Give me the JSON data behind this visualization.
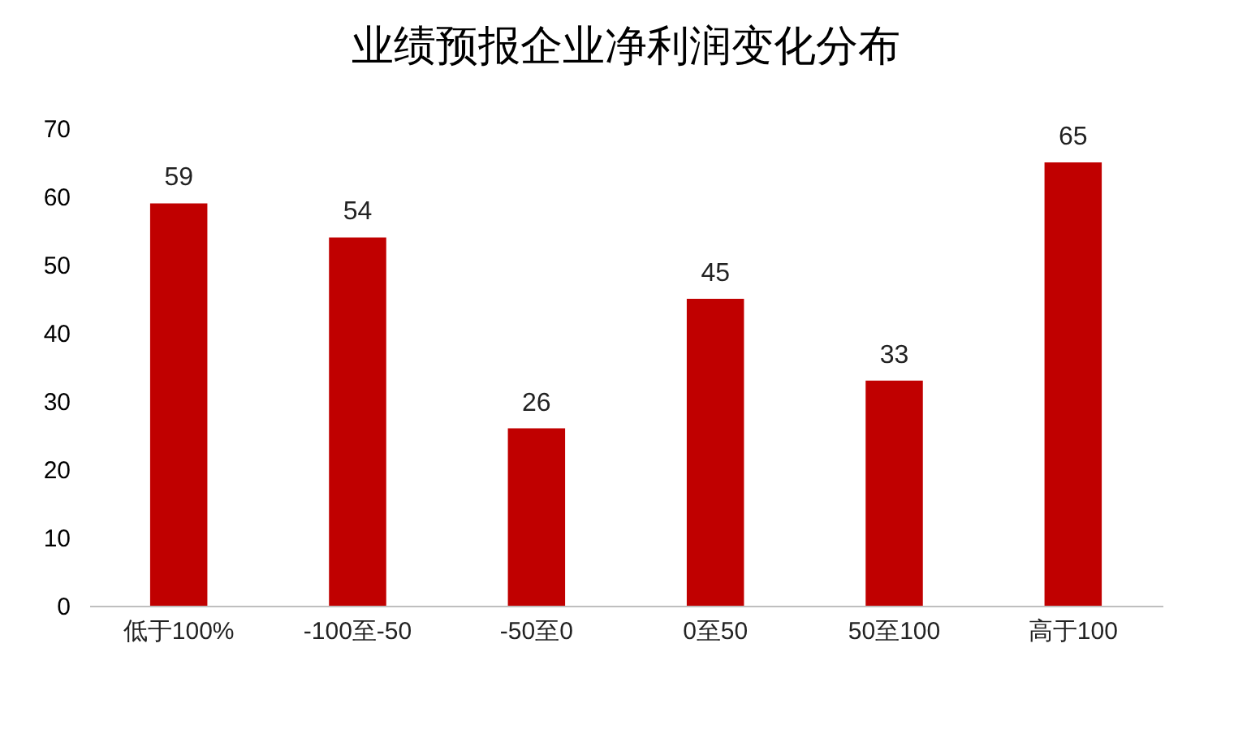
{
  "chart_data": {
    "type": "bar",
    "title": "业绩预报企业净利润变化分布",
    "categories": [
      "低于100%",
      "-100至-50",
      "-50至0",
      "0至50",
      "50至100",
      "高于100"
    ],
    "values": [
      59,
      54,
      26,
      45,
      33,
      65
    ],
    "color": "#c00000",
    "ylim": [
      0,
      70
    ],
    "yticks": [
      0,
      10,
      20,
      30,
      40,
      50,
      60,
      70
    ],
    "grid": false,
    "data_labels": true
  }
}
